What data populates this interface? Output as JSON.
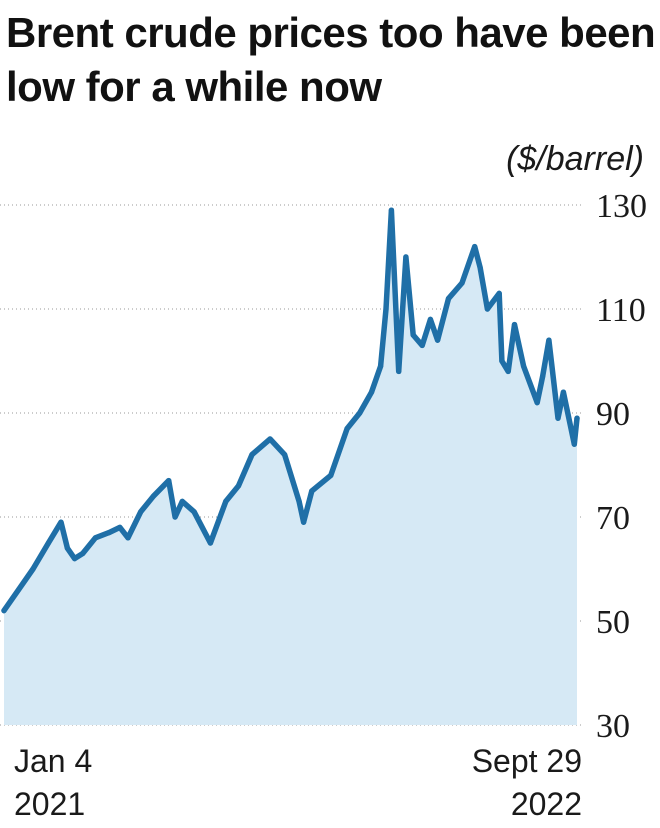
{
  "chart_data": {
    "type": "area",
    "title": "Brent crude prices too have been low for a while now",
    "unit_label": "($/barrel)",
    "x_start": {
      "line1": "Jan 4",
      "line2": "2021"
    },
    "x_end": {
      "line1": "Sept 29",
      "line2": "2022"
    },
    "xlim": [
      "2021-01-04",
      "2022-09-29"
    ],
    "ylim": [
      30,
      130
    ],
    "yticks": [
      130,
      110,
      90,
      70,
      50,
      30
    ],
    "grid": "horizontal-dotted",
    "series": [
      {
        "x": [
          "2021-01-04",
          "2021-01-20",
          "2021-02-05",
          "2021-02-22",
          "2021-03-08",
          "2021-03-15",
          "2021-03-23",
          "2021-04-01",
          "2021-04-15",
          "2021-04-30",
          "2021-05-12",
          "2021-05-21",
          "2021-06-04",
          "2021-06-18",
          "2021-07-05",
          "2021-07-12",
          "2021-07-20",
          "2021-08-02",
          "2021-08-20",
          "2021-09-06",
          "2021-09-20",
          "2021-10-05",
          "2021-10-25",
          "2021-11-10",
          "2021-11-26",
          "2021-12-01",
          "2021-12-10",
          "2021-12-31",
          "2022-01-18",
          "2022-02-01",
          "2022-02-14",
          "2022-02-24",
          "2022-03-02",
          "2022-03-08",
          "2022-03-16",
          "2022-03-24",
          "2022-04-01",
          "2022-04-11",
          "2022-04-20",
          "2022-04-28",
          "2022-05-10",
          "2022-05-25",
          "2022-06-08",
          "2022-06-14",
          "2022-06-22",
          "2022-07-05",
          "2022-07-08",
          "2022-07-15",
          "2022-07-22",
          "2022-08-01",
          "2022-08-16",
          "2022-08-22",
          "2022-08-29",
          "2022-09-08",
          "2022-09-14",
          "2022-09-26",
          "2022-09-29"
        ],
        "values": [
          52,
          56,
          60,
          65,
          69,
          64,
          62,
          63,
          66,
          67,
          68,
          66,
          71,
          74,
          77,
          70,
          73,
          71,
          65,
          73,
          76,
          82,
          85,
          82,
          73,
          69,
          75,
          78,
          87,
          90,
          94,
          99,
          110,
          129,
          98,
          120,
          105,
          103,
          108,
          104,
          112,
          115,
          122,
          118,
          110,
          113,
          100,
          98,
          107,
          99,
          92,
          97,
          104,
          89,
          94,
          84,
          89
        ]
      }
    ]
  }
}
